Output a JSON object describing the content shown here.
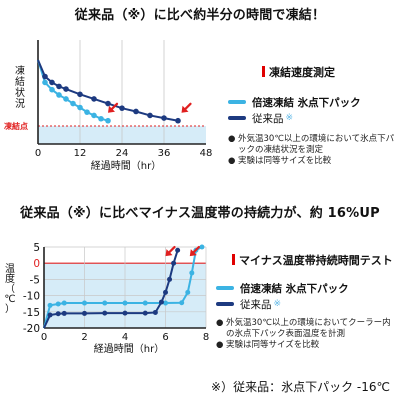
{
  "headline_top": "従来品（※）に比べ約半分の時間で凍結！",
  "headline_bottom": "従来品（※）に比べマイナス温度帯の持続力が、約 16%UP",
  "footnote": "※）従来品：氷点下パック -16℃",
  "colors": {
    "fast": "#3bb3e3",
    "conventional": "#1d3a80",
    "arrow": "#e02020",
    "band": "#d6ecf8",
    "red_line": "#e02020",
    "grid": "#c8c8c8"
  },
  "panel1": {
    "title": "凍結速度測定",
    "legend": {
      "fast": "倍速凍結 氷点下パック",
      "conventional": "従来品"
    },
    "notes": [
      {
        "bullet": "●",
        "text": "外気温30℃以上の環境において氷点下パックの凍結状況を測定"
      },
      {
        "bullet": "●",
        "text": "実験は同等サイズを比較"
      }
    ]
  },
  "panel2": {
    "title": "マイナス温度帯持続時間テスト",
    "legend": {
      "fast": "倍速凍結 氷点下パック",
      "conventional": "従来品"
    },
    "notes": [
      {
        "bullet": "●",
        "text": "外気温30℃以上の環境においてクーラー内の氷点下パック表面温度を計測"
      },
      {
        "bullet": "●",
        "text": "実験は同等サイズを比較"
      }
    ]
  },
  "chart_data": [
    {
      "type": "line",
      "ylabel": "凍結状況",
      "xlabel": "経過時間（hr）",
      "x_ticks": [
        0,
        12,
        24,
        36,
        48
      ],
      "xlim": [
        0,
        48
      ],
      "ylim": [
        0,
        1
      ],
      "threshold_label": "凍結点",
      "series": [
        {
          "name": "倍速凍結 氷点下パック",
          "color_key": "fast",
          "points": [
            [
              0,
              1.0
            ],
            [
              2,
              0.66
            ],
            [
              4,
              0.55
            ],
            [
              6,
              0.47
            ],
            [
              8,
              0.41
            ],
            [
              10,
              0.34
            ],
            [
              12,
              0.28
            ],
            [
              14,
              0.21
            ],
            [
              16,
              0.16
            ],
            [
              18,
              0.11
            ],
            [
              20,
              0.08
            ]
          ]
        },
        {
          "name": "従来品",
          "color_key": "conventional",
          "points": [
            [
              0,
              1.0
            ],
            [
              2,
              0.75
            ],
            [
              4,
              0.66
            ],
            [
              6,
              0.6
            ],
            [
              8,
              0.56
            ],
            [
              12,
              0.48
            ],
            [
              16,
              0.41
            ],
            [
              20,
              0.34
            ],
            [
              24,
              0.27
            ],
            [
              28,
              0.22
            ],
            [
              32,
              0.16
            ],
            [
              36,
              0.12
            ],
            [
              40,
              0.08
            ]
          ]
        }
      ],
      "arrows": [
        [
          20,
          0.2
        ],
        [
          41,
          0.2
        ]
      ]
    },
    {
      "type": "line",
      "ylabel": "温度（℃）",
      "xlabel": "経過時間（hr）",
      "x_ticks": [
        0,
        2,
        4,
        6,
        8
      ],
      "y_ticks": [
        5,
        0,
        -5,
        -10,
        -15,
        -20
      ],
      "xlim": [
        0,
        8
      ],
      "ylim": [
        -20,
        5
      ],
      "series": [
        {
          "name": "倍速凍結 氷点下パック",
          "color_key": "fast",
          "points": [
            [
              0,
              -20
            ],
            [
              0.3,
              -13
            ],
            [
              0.7,
              -12.6
            ],
            [
              1,
              -12.3
            ],
            [
              2,
              -12.3
            ],
            [
              3,
              -12.3
            ],
            [
              4,
              -12.3
            ],
            [
              5,
              -12.3
            ],
            [
              6,
              -12.3
            ],
            [
              6.8,
              -12.2
            ],
            [
              7.1,
              -9
            ],
            [
              7.3,
              -3
            ],
            [
              7.5,
              4
            ],
            [
              7.8,
              5
            ]
          ]
        },
        {
          "name": "従来品",
          "color_key": "conventional",
          "points": [
            [
              0,
              -20
            ],
            [
              0.3,
              -16
            ],
            [
              0.7,
              -15.6
            ],
            [
              1,
              -15.5
            ],
            [
              2,
              -15.5
            ],
            [
              3,
              -15.4
            ],
            [
              4,
              -15.4
            ],
            [
              5,
              -15.4
            ],
            [
              5.5,
              -15.2
            ],
            [
              5.8,
              -12
            ],
            [
              6.0,
              -9
            ],
            [
              6.2,
              -5
            ],
            [
              6.4,
              0
            ],
            [
              6.6,
              4
            ]
          ]
        }
      ],
      "arrows": [
        [
          6.0,
          2.2
        ],
        [
          7.2,
          2.2
        ]
      ]
    }
  ]
}
